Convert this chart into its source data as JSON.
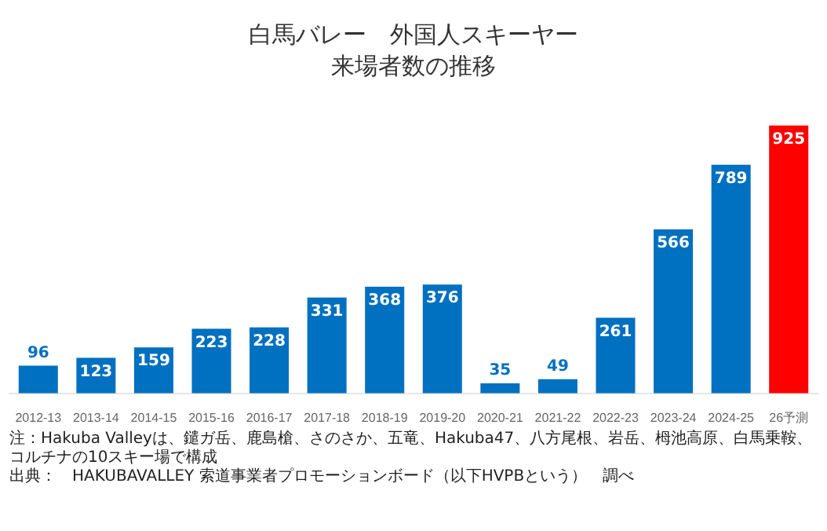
{
  "chart_data": {
    "type": "bar",
    "title": "白馬バレー　外国人スキーヤー",
    "subtitle": "来場者数の推移",
    "categories": [
      "2012-13",
      "2013-14",
      "2014-15",
      "2015-16",
      "2016-17",
      "2017-18",
      "2018-19",
      "2019-20",
      "2020-21",
      "2021-22",
      "2022-23",
      "2023-24",
      "2024-25",
      "26予測"
    ],
    "values": [
      96,
      123,
      159,
      223,
      228,
      331,
      368,
      376,
      35,
      49,
      261,
      566,
      789,
      925
    ],
    "colors": [
      "#0070c0",
      "#0070c0",
      "#0070c0",
      "#0070c0",
      "#0070c0",
      "#0070c0",
      "#0070c0",
      "#0070c0",
      "#0070c0",
      "#0070c0",
      "#0070c0",
      "#0070c0",
      "#0070c0",
      "#ff0000"
    ],
    "data_labels": true,
    "grid": false,
    "legend": false,
    "annotations": [
      "注：Hakuba Valleyは、鑓ガ岳、鹿島槍、さのさか、五竜、Hakuba47、八方尾根、岩岳、栂池高原、白馬乗鞍、コルチナの10スキー場で構成",
      "出典：　HAKUBAVALLEY 索道事業者プロモーションボード（以下HVPBという）　調べ"
    ]
  }
}
